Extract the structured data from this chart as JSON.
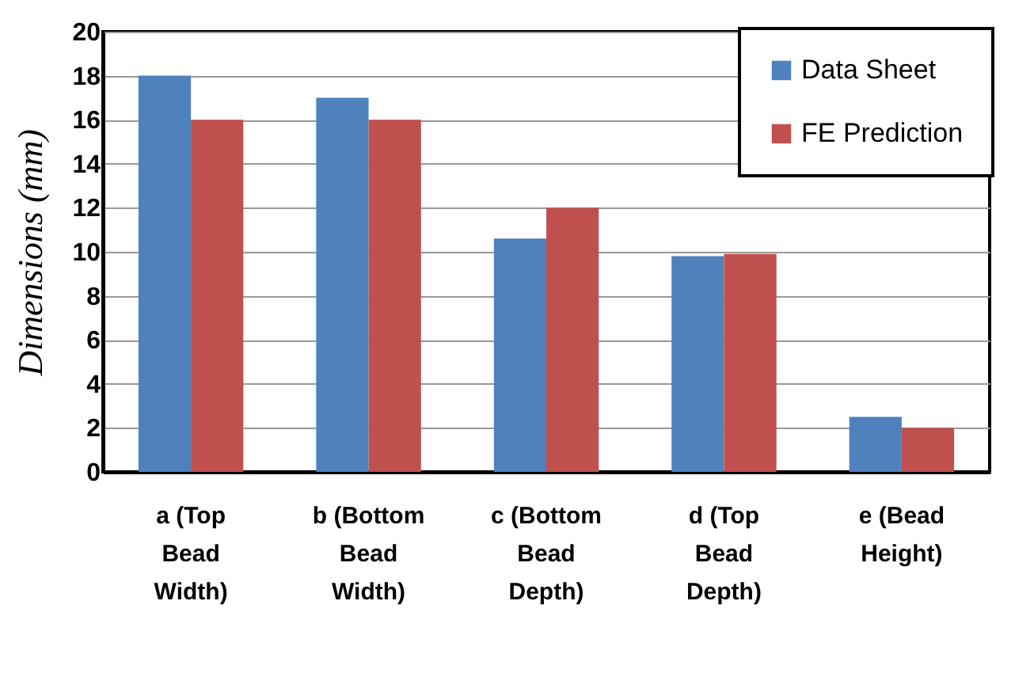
{
  "chart_data": {
    "type": "bar",
    "ylabel": "Dimensions (mm)",
    "categories": [
      "a (Top Bead Width)",
      "b (Bottom Bead Width)",
      "c (Bottom Bead Depth)",
      "d (Top Bead Depth)",
      "e (Bead Height)"
    ],
    "series": [
      {
        "name": "Data Sheet",
        "color": "#4f81bd",
        "values": [
          18,
          17,
          10.6,
          9.8,
          2.5
        ]
      },
      {
        "name": "FE Prediction",
        "color": "#c0504d",
        "values": [
          16,
          16,
          12,
          9.9,
          2.0
        ]
      }
    ],
    "ylim": [
      0,
      20
    ],
    "yticks": [
      0,
      2,
      4,
      6,
      8,
      10,
      12,
      14,
      16,
      18,
      20
    ],
    "grid": "y",
    "legend": "top right"
  }
}
